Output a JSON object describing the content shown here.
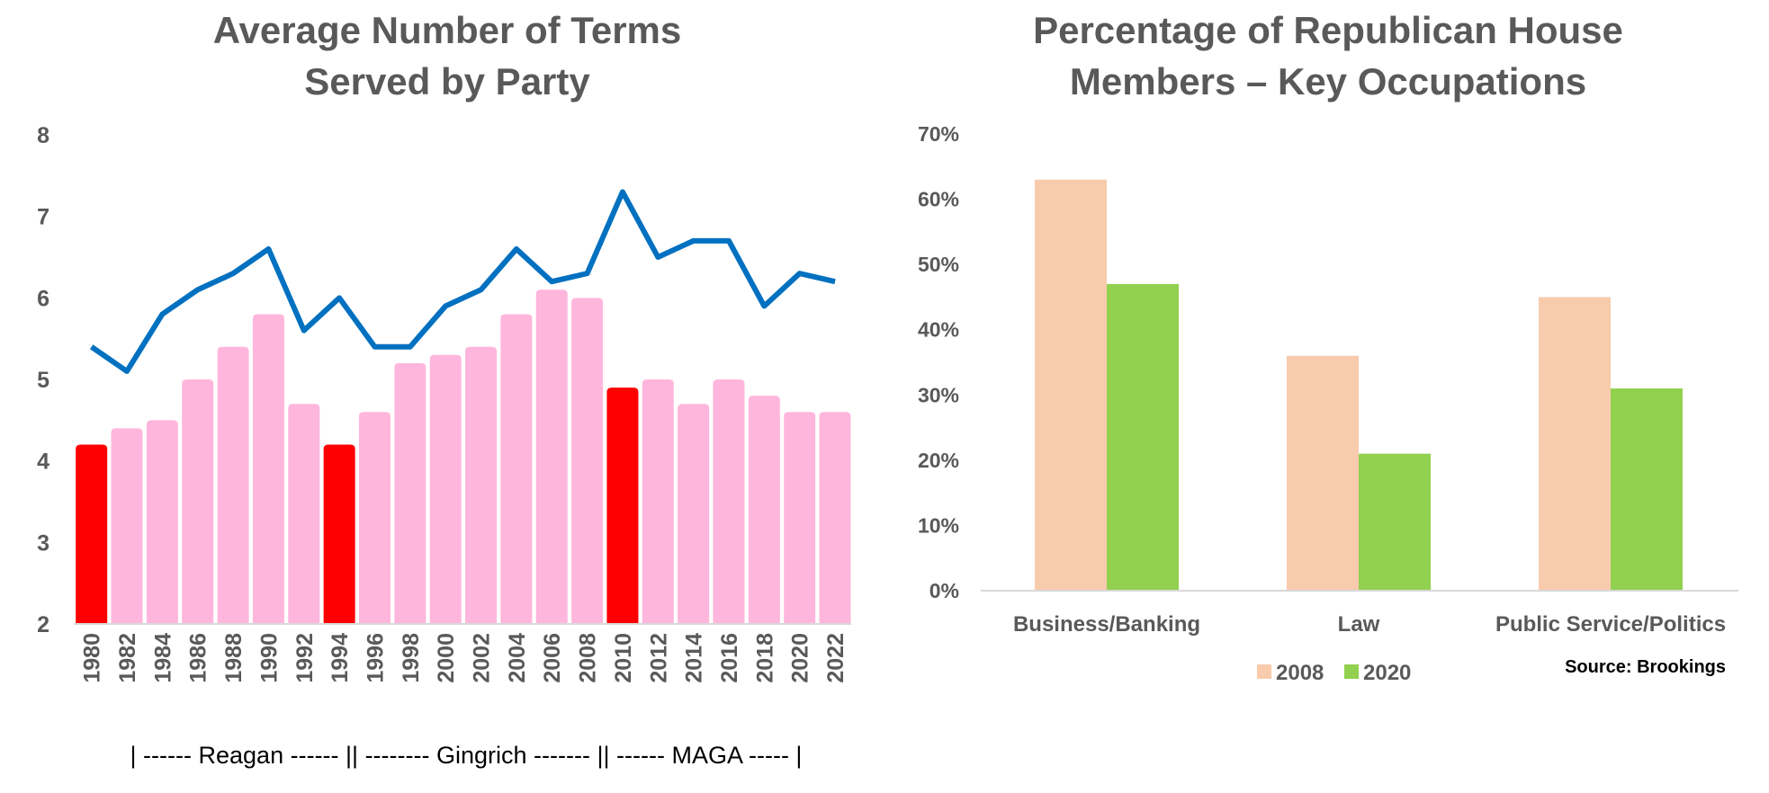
{
  "colors": {
    "bar_default": "#ffb6dc",
    "bar_highlight": "#ff0000",
    "line": "#0070c0",
    "bar_2008": "#f8cbad",
    "bar_2020": "#92d050",
    "text": "#595959",
    "axis": "#d9d9d9"
  },
  "chart_data": [
    {
      "type": "bar",
      "title_lines": [
        "Average Number of Terms",
        "Served by Party"
      ],
      "categories": [
        "1980",
        "1982",
        "1984",
        "1986",
        "1988",
        "1990",
        "1992",
        "1994",
        "1996",
        "1998",
        "2000",
        "2002",
        "2004",
        "2006",
        "2008",
        "2010",
        "2012",
        "2014",
        "2016",
        "2018",
        "2020",
        "2022"
      ],
      "ylim": [
        2,
        8
      ],
      "yticks": [
        "2",
        "3",
        "4",
        "5",
        "6",
        "7",
        "8"
      ],
      "series": [
        {
          "type": "bar",
          "values": [
            4.2,
            4.4,
            4.5,
            5.0,
            5.4,
            5.8,
            4.7,
            4.2,
            4.6,
            5.2,
            5.3,
            5.4,
            5.8,
            6.1,
            6.0,
            4.9,
            5.0,
            4.7,
            5.0,
            4.8,
            4.6,
            4.6
          ],
          "highlight_categories": [
            "1980",
            "1994",
            "2010"
          ]
        },
        {
          "type": "line",
          "values": [
            5.4,
            5.1,
            5.8,
            6.1,
            6.3,
            6.6,
            5.6,
            6.0,
            5.4,
            5.4,
            5.9,
            6.1,
            6.6,
            6.2,
            6.3,
            7.3,
            6.5,
            6.7,
            6.7,
            5.9,
            6.3,
            6.2
          ]
        }
      ],
      "annotation": "| ------ Reagan ------ || -------- Gingrich ------- || ------ MAGA ----- |"
    },
    {
      "type": "bar",
      "title_lines": [
        "Percentage of Republican House",
        "Members – Key Occupations"
      ],
      "categories": [
        "Business/Banking",
        "Law",
        "Public Service/Politics"
      ],
      "ylim": [
        0,
        70
      ],
      "yticks": [
        "0%",
        "10%",
        "20%",
        "30%",
        "40%",
        "50%",
        "60%",
        "70%"
      ],
      "series": [
        {
          "name": "2008",
          "values": [
            63,
            36,
            45
          ]
        },
        {
          "name": "2020",
          "values": [
            47,
            21,
            31
          ]
        }
      ],
      "legend_position": "bottom",
      "source": "Source: Brookings"
    }
  ]
}
